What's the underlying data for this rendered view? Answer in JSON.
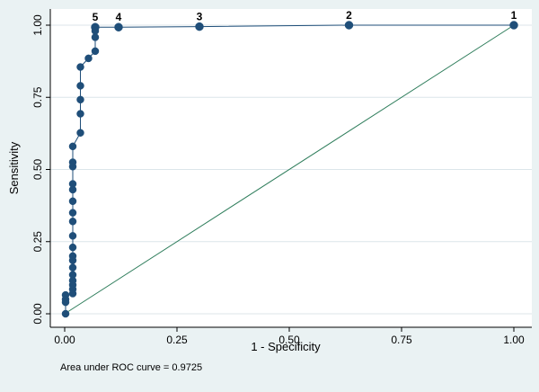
{
  "chart_data": {
    "type": "scatter",
    "xlabel": "1 - Specificity",
    "ylabel": "Sensitivity",
    "xlim": [
      0,
      1
    ],
    "ylim": [
      0,
      1
    ],
    "xticks": [
      "0.00",
      "0.25",
      "0.50",
      "0.75",
      "1.00"
    ],
    "yticks": [
      "0.00",
      "0.25",
      "0.50",
      "0.75",
      "1.00"
    ],
    "xtick_values": [
      0,
      0.25,
      0.5,
      0.75,
      1
    ],
    "ytick_values": [
      0,
      0.25,
      0.5,
      0.75,
      1
    ],
    "grid": "horizontal",
    "colors": {
      "marker": "#1f4e79",
      "curve": "#1f4e79",
      "reference": "#2e7d5b",
      "background": "#eaf2f3",
      "plot_area": "#ffffff",
      "grid": "#dce6ea"
    },
    "series": [
      {
        "points": [
          {
            "x": 1.0,
            "y": 1.0,
            "label": "1"
          },
          {
            "x": 0.633,
            "y": 1.0,
            "label": "2"
          },
          {
            "x": 0.3,
            "y": 0.995,
            "label": "3"
          },
          {
            "x": 0.12,
            "y": 0.993,
            "label": "4"
          },
          {
            "x": 0.068,
            "y": 0.993,
            "label": "5"
          },
          {
            "x": 0.068,
            "y": 0.98
          },
          {
            "x": 0.068,
            "y": 0.958
          },
          {
            "x": 0.068,
            "y": 0.91
          },
          {
            "x": 0.053,
            "y": 0.885
          },
          {
            "x": 0.035,
            "y": 0.855
          },
          {
            "x": 0.035,
            "y": 0.79
          },
          {
            "x": 0.035,
            "y": 0.742
          },
          {
            "x": 0.035,
            "y": 0.693
          },
          {
            "x": 0.035,
            "y": 0.627
          },
          {
            "x": 0.018,
            "y": 0.58
          },
          {
            "x": 0.018,
            "y": 0.525
          },
          {
            "x": 0.018,
            "y": 0.51
          },
          {
            "x": 0.018,
            "y": 0.45
          },
          {
            "x": 0.018,
            "y": 0.43
          },
          {
            "x": 0.018,
            "y": 0.39
          },
          {
            "x": 0.018,
            "y": 0.35
          },
          {
            "x": 0.018,
            "y": 0.32
          },
          {
            "x": 0.018,
            "y": 0.27
          },
          {
            "x": 0.018,
            "y": 0.23
          },
          {
            "x": 0.018,
            "y": 0.2
          },
          {
            "x": 0.018,
            "y": 0.185
          },
          {
            "x": 0.018,
            "y": 0.16
          },
          {
            "x": 0.018,
            "y": 0.135
          },
          {
            "x": 0.018,
            "y": 0.115
          },
          {
            "x": 0.018,
            "y": 0.1
          },
          {
            "x": 0.018,
            "y": 0.085
          },
          {
            "x": 0.018,
            "y": 0.07
          },
          {
            "x": 0.002,
            "y": 0.065
          },
          {
            "x": 0.002,
            "y": 0.05
          },
          {
            "x": 0.002,
            "y": 0.04
          },
          {
            "x": 0.002,
            "y": 0.0
          }
        ]
      }
    ],
    "reference_line": {
      "x": [
        0,
        1
      ],
      "y": [
        0,
        1
      ]
    }
  },
  "footer_note": "Area under ROC curve = 0.9725"
}
